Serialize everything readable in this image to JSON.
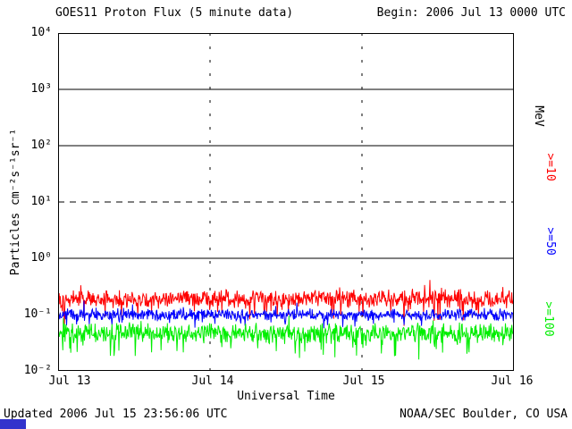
{
  "header": {
    "title": "GOES11 Proton Flux (5 minute data)",
    "begin_label": "Begin: 2006 Jul 13 0000 UTC"
  },
  "footer": {
    "updated": "Updated 2006 Jul 15 23:56:06 UTC",
    "source": "NOAA/SEC Boulder, CO USA"
  },
  "colors": {
    "axis": "#000000",
    "corner_box": "#3333cc"
  },
  "chart_data": {
    "type": "line",
    "title": "GOES11 Proton Flux (5 minute data)",
    "xlabel": "Universal Time",
    "ylabel": "Particles cm⁻²s⁻¹sr⁻¹",
    "right_axis_unit": "MeV",
    "x_ticks": [
      "Jul 13",
      "Jul 14",
      "Jul 15",
      "Jul 16"
    ],
    "y_ticks": [
      "10⁴",
      "10³",
      "10²",
      "10¹",
      "10⁰",
      "10⁻¹",
      "10⁻²"
    ],
    "y_log_range": [
      -2,
      4
    ],
    "x_range_utc": [
      "2006 Jul 13 0000 UTC",
      "2006 Jul 16 0000 UTC"
    ],
    "cadence": "5 minute",
    "grid": true,
    "legend_position": "right-rotated",
    "gridlines": [
      {
        "level": 1000,
        "style": "solid"
      },
      {
        "level": 100,
        "style": "solid"
      },
      {
        "level": 10,
        "style": "dashed"
      },
      {
        "level": 1,
        "style": "solid"
      },
      {
        "level": 0.1,
        "style": "dotted"
      }
    ],
    "vertical_gridlines": [
      "Jul 14",
      "Jul 15"
    ],
    "points_per_series": 864,
    "series": [
      {
        "name": ">=10",
        "color": "#ff0000",
        "median_flux": 0.19,
        "min_flux": 0.08,
        "max_flux": 0.42,
        "log_mean": -0.72,
        "log_amp": 0.18,
        "spike_extra": 0.35,
        "seed": 101
      },
      {
        "name": ">=50",
        "color": "#0000ff",
        "median_flux": 0.1,
        "min_flux": 0.06,
        "max_flux": 0.17,
        "log_mean": -1.0,
        "log_amp": 0.12,
        "spike_extra": 0.2,
        "seed": 202
      },
      {
        "name": ">=100",
        "color": "#00ee00",
        "median_flux": 0.045,
        "min_flux": 0.015,
        "max_flux": 0.09,
        "log_mean": -1.33,
        "log_amp": 0.2,
        "spike_extra": 0.4,
        "seed": 303
      }
    ]
  }
}
